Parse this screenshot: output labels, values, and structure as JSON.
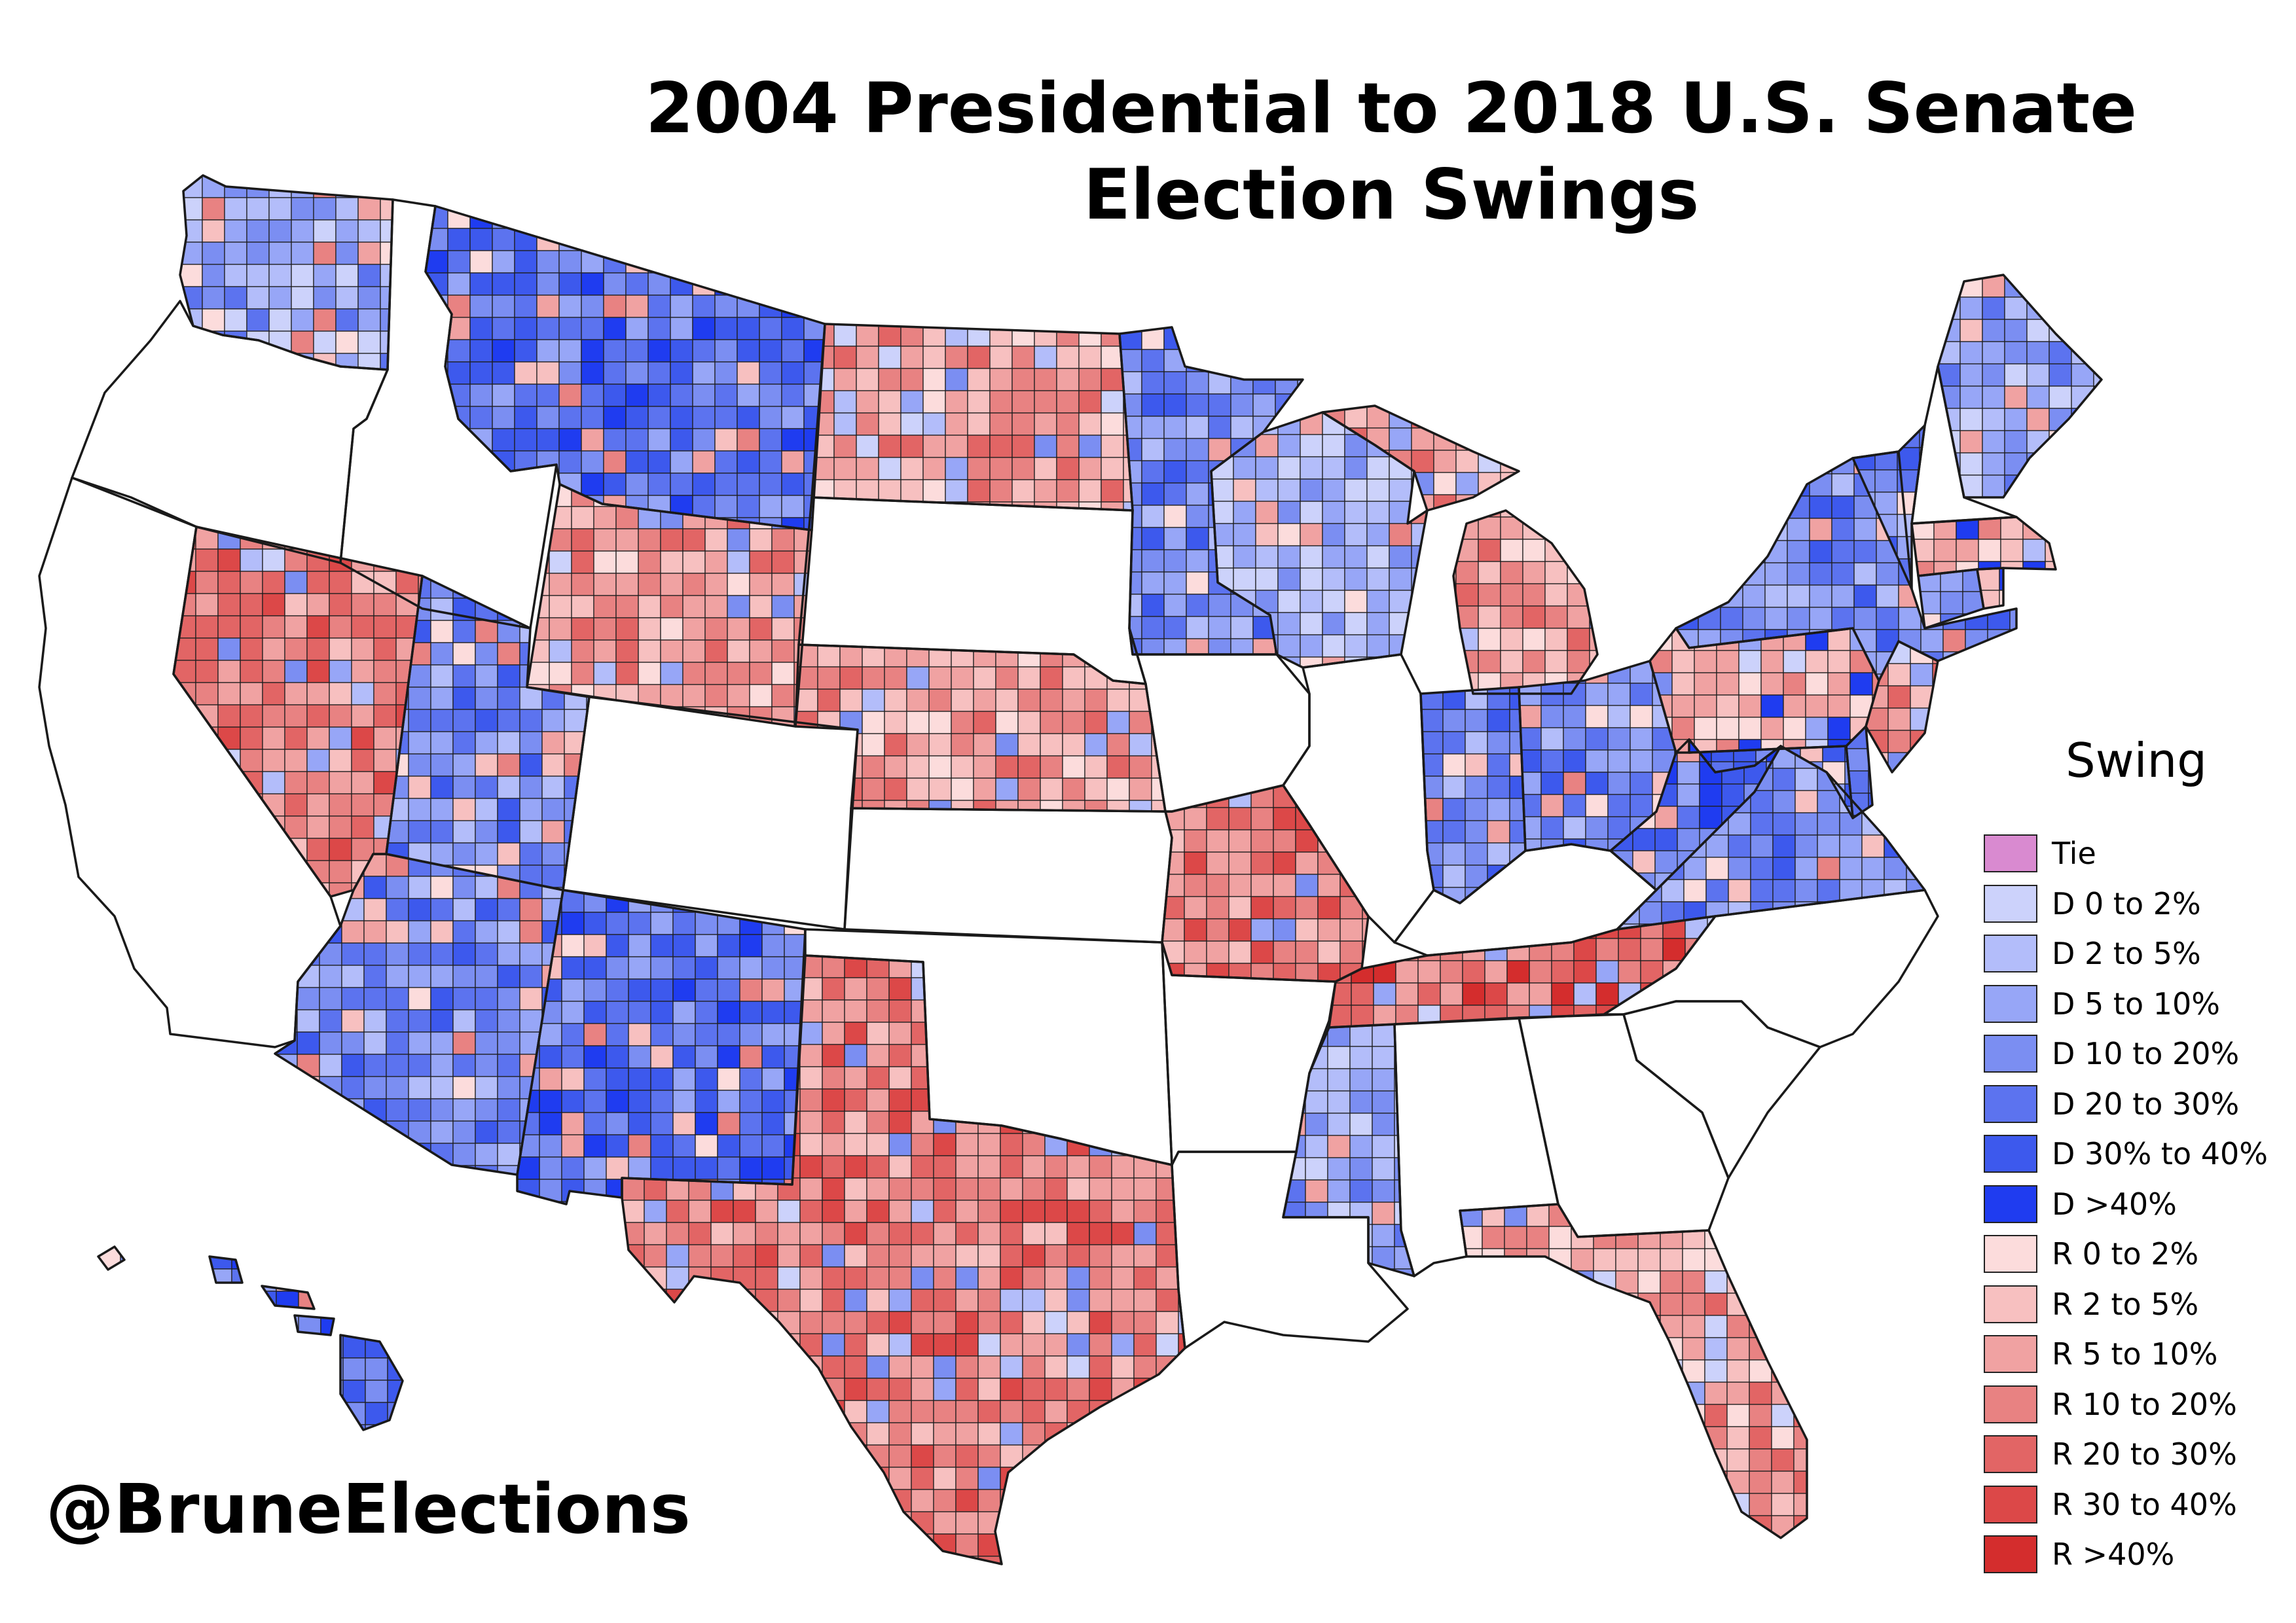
{
  "title_line1": "2004 Presidential to 2018 U.S. Senate",
  "title_line2": "Election Swings",
  "credit": "@BruneElections",
  "legend": {
    "title": "Swing",
    "items": [
      {
        "label": "Tie",
        "color": "#d98ad0"
      },
      {
        "label": "D 0 to 2%",
        "color": "#ccd2fb"
      },
      {
        "label": "D 2 to 5%",
        "color": "#b3bdfa"
      },
      {
        "label": "D 5 to 10%",
        "color": "#97a6f7"
      },
      {
        "label": "D 10 to 20%",
        "color": "#7b8ef2"
      },
      {
        "label": "D 20 to 30%",
        "color": "#5c73ef"
      },
      {
        "label": "D 30% to 40%",
        "color": "#3d59ed"
      },
      {
        "label": "D >40%",
        "color": "#1f3cf0"
      },
      {
        "label": "R 0 to 2%",
        "color": "#fcdcdc"
      },
      {
        "label": "R 2 to 5%",
        "color": "#f7c0c0"
      },
      {
        "label": "R 5 to 10%",
        "color": "#f0a2a2"
      },
      {
        "label": "R 10 to 20%",
        "color": "#e88282"
      },
      {
        "label": "R 20 to 30%",
        "color": "#e26565"
      },
      {
        "label": "R 30 to 40%",
        "color": "#dc4848"
      },
      {
        "label": "R >40%",
        "color": "#d42d2d"
      }
    ]
  },
  "colors": {
    "no_election": "#ffffff"
  },
  "map_data": {
    "state_swings": [
      {
        "state": "WA",
        "swing": "D 5 to 10%"
      },
      {
        "state": "OR",
        "swing": "no election"
      },
      {
        "state": "CA",
        "swing": "no election"
      },
      {
        "state": "NV",
        "swing": "R 10 to 20%"
      },
      {
        "state": "ID",
        "swing": "no election"
      },
      {
        "state": "MT",
        "swing": "D 20 to 30%"
      },
      {
        "state": "WY",
        "swing": "R 5 to 10%"
      },
      {
        "state": "UT",
        "swing": "D 10 to 20%"
      },
      {
        "state": "AZ",
        "swing": "D 10 to 20%"
      },
      {
        "state": "NM",
        "swing": "D 20 to 30%"
      },
      {
        "state": "CO",
        "swing": "no election"
      },
      {
        "state": "ND",
        "swing": "R 5 to 10%"
      },
      {
        "state": "SD",
        "swing": "no election"
      },
      {
        "state": "NE",
        "swing": "R 5 to 10%"
      },
      {
        "state": "KS",
        "swing": "no election"
      },
      {
        "state": "OK",
        "swing": "no election"
      },
      {
        "state": "TX",
        "swing": "R 10 to 20%"
      },
      {
        "state": "MN",
        "swing": "D 10 to 20%"
      },
      {
        "state": "IA",
        "swing": "no election"
      },
      {
        "state": "MO",
        "swing": "R 10 to 20%"
      },
      {
        "state": "AR",
        "swing": "no election"
      },
      {
        "state": "LA",
        "swing": "no election"
      },
      {
        "state": "WI",
        "swing": "D 2 to 5%"
      },
      {
        "state": "IL",
        "swing": "no election"
      },
      {
        "state": "MS",
        "swing": "D 5 to 10%"
      },
      {
        "state": "MI",
        "swing": "R 5 to 10%"
      },
      {
        "state": "IN",
        "swing": "D 10 to 20%"
      },
      {
        "state": "KY",
        "swing": "no election"
      },
      {
        "state": "TN",
        "swing": "R 20 to 30%"
      },
      {
        "state": "AL",
        "swing": "no election"
      },
      {
        "state": "OH",
        "swing": "D 10 to 20%"
      },
      {
        "state": "WV",
        "swing": "D 20 to 30%"
      },
      {
        "state": "VA",
        "swing": "D 10 to 20%"
      },
      {
        "state": "NC",
        "swing": "no election"
      },
      {
        "state": "SC",
        "swing": "no election"
      },
      {
        "state": "GA",
        "swing": "no election"
      },
      {
        "state": "FL",
        "swing": "R 5 to 10%"
      },
      {
        "state": "PA",
        "swing": "R 2 to 5%"
      },
      {
        "state": "NY",
        "swing": "D 10 to 20%"
      },
      {
        "state": "MD",
        "swing": "D 20 to 30%"
      },
      {
        "state": "DE",
        "swing": "D 10 to 20%"
      },
      {
        "state": "NJ",
        "swing": "R 5 to 10%"
      },
      {
        "state": "CT",
        "swing": "D 5 to 10%"
      },
      {
        "state": "RI",
        "swing": "R 2 to 5%"
      },
      {
        "state": "MA",
        "swing": "R 2 to 5%"
      },
      {
        "state": "VT",
        "swing": "D 10 to 20%"
      },
      {
        "state": "NH",
        "swing": "no election"
      },
      {
        "state": "ME",
        "swing": "D 5 to 10%"
      },
      {
        "state": "HI",
        "swing": "D 20 to 30%"
      }
    ]
  }
}
